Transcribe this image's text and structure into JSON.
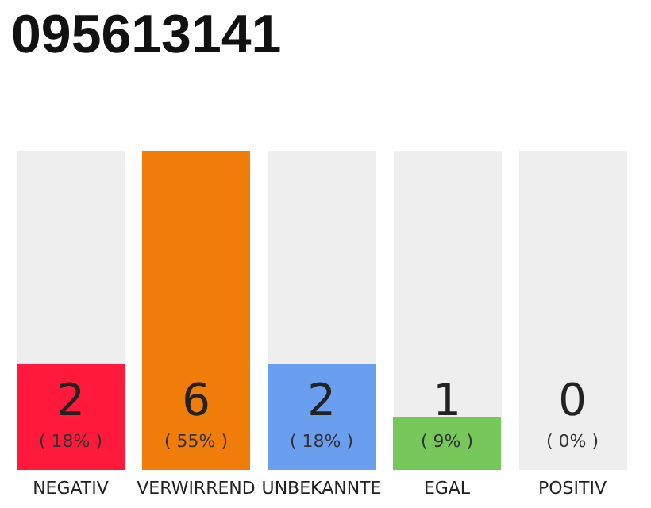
{
  "chart_data": {
    "type": "bar",
    "title": "095613141",
    "categories": [
      "NEGATIV",
      "VERWIRREND",
      "UNBEKANNTE",
      "EGAL",
      "POSITIV"
    ],
    "values": [
      2,
      6,
      2,
      1,
      0
    ],
    "colors": [
      "#ff1a3c",
      "#f07d0a",
      "#6a9ff0",
      "#77c85a",
      "#bbbbbb"
    ],
    "value_labels": [
      "2\n( 18% )",
      "6\n( 55% )",
      "2\n( 18% )",
      "1\n( 9% )",
      "0\n( 0% )"
    ],
    "bands": [
      {
        "axis": "x",
        "from": "NEGATIV",
        "to": "NEGATIV",
        "color": "#eeeeee"
      },
      {
        "axis": "x",
        "from": "UNBEKANNTE",
        "to": "UNBEKANNTE",
        "color": "#eeeeee"
      },
      {
        "axis": "x",
        "from": "EGAL",
        "to": "EGAL",
        "color": "#eeeeee"
      },
      {
        "axis": "x",
        "from": "POSITIV",
        "to": "POSITIV",
        "color": "#eeeeee"
      }
    ]
  }
}
